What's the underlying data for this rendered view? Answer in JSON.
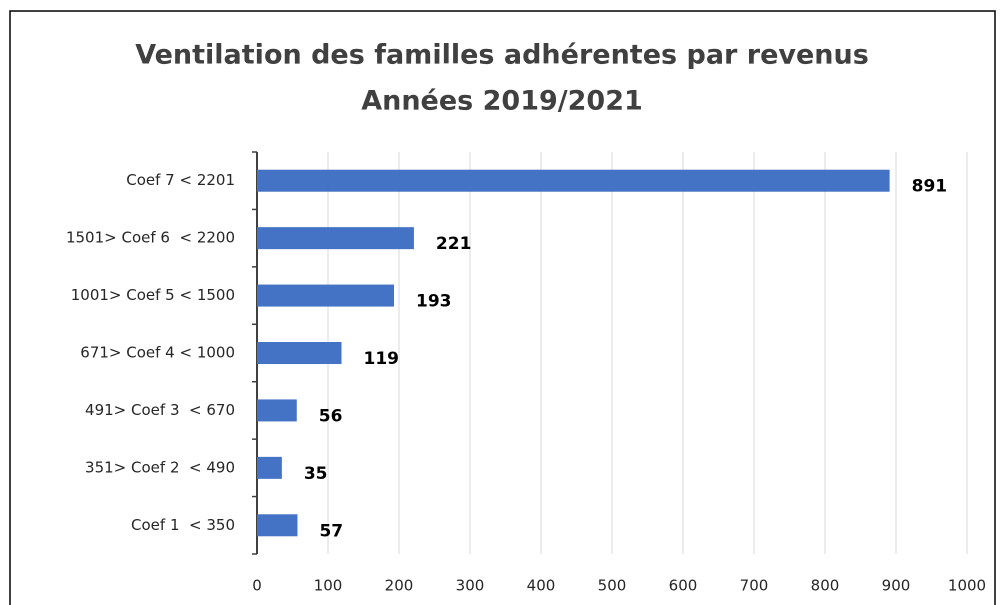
{
  "chart_data": {
    "type": "bar",
    "orientation": "horizontal",
    "title": "Ventilation des familles adhérentes par revenus",
    "subtitle": "Années 2019/2021",
    "categories": [
      "Coef 7 < 2201",
      "1501> Coef 6  < 2200",
      "1001> Coef 5 < 1500",
      "671> Coef 4 < 1000",
      "491> Coef 3  < 670",
      "351> Coef 2  < 490",
      "Coef 1  < 350"
    ],
    "values": [
      891,
      221,
      193,
      119,
      56,
      35,
      57
    ],
    "color": "#4472c4",
    "xlim": [
      0,
      1000
    ],
    "xticks": [
      0,
      100,
      200,
      300,
      400,
      500,
      600,
      700,
      800,
      900,
      1000
    ],
    "grid": true
  }
}
